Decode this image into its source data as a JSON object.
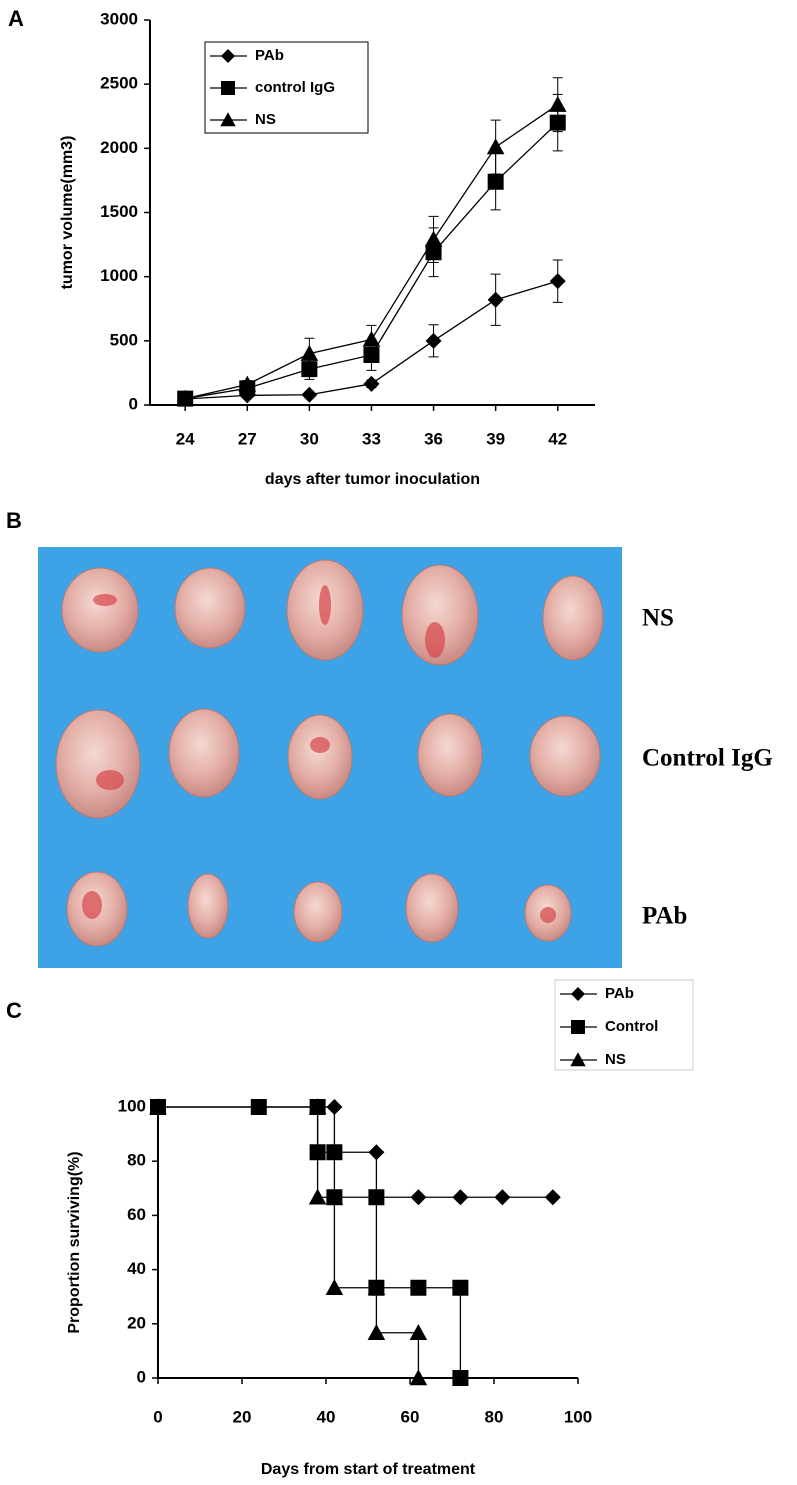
{
  "figure": {
    "panel_labels": [
      "A",
      "B",
      "C"
    ],
    "photo_labels": [
      "NS",
      "Control IgG",
      "PAb"
    ]
  },
  "chart_data": [
    {
      "type": "line",
      "x_label": "days after tumor inoculation",
      "y_label": "tumor volume(mm3)",
      "x": [
        24,
        27,
        30,
        33,
        36,
        39,
        42
      ],
      "xlim": [
        22.3,
        43.8
      ],
      "xticks": [
        24,
        27,
        30,
        33,
        36,
        39,
        42
      ],
      "ylim": [
        0,
        3000
      ],
      "yticks": [
        0,
        500,
        1000,
        1500,
        2000,
        2500,
        3000
      ],
      "legend": "upper left",
      "series": [
        {
          "name": "PAb",
          "color": "#000000",
          "marker": "diamond",
          "values": [
            47,
            75,
            80,
            165,
            500,
            820,
            965
          ],
          "errors": [
            null,
            20,
            20,
            30,
            125,
            200,
            165
          ]
        },
        {
          "name": "control IgG",
          "color": "#000000",
          "marker": "square",
          "values": [
            50,
            130,
            280,
            390,
            1190,
            1740,
            2200
          ],
          "errors": [
            null,
            30,
            80,
            120,
            190,
            220,
            220
          ]
        },
        {
          "name": "NS",
          "color": "#000000",
          "marker": "triangle",
          "values": [
            50,
            160,
            400,
            510,
            1290,
            2010,
            2340
          ],
          "errors": [
            null,
            30,
            120,
            110,
            180,
            210,
            210
          ]
        }
      ]
    },
    {
      "type": "line",
      "x_label": "Days from start of treatment",
      "y_label": "Proportion surviving(%)",
      "xlim": [
        0,
        100
      ],
      "xticks": [
        0,
        20,
        40,
        60,
        80,
        100
      ],
      "ylim": [
        0,
        100
      ],
      "yticks": [
        0,
        20,
        40,
        60,
        80,
        100
      ],
      "legend": "upper right",
      "series": [
        {
          "name": "PAb",
          "color": "#000000",
          "marker": "diamond",
          "x": [
            0,
            42,
            42,
            52,
            52,
            62,
            72,
            82,
            94
          ],
          "values": [
            100,
            100,
            83.3,
            83.3,
            66.7,
            66.7,
            66.7,
            66.7,
            66.7
          ]
        },
        {
          "name": "Control",
          "color": "#000000",
          "marker": "square",
          "x": [
            0,
            24,
            38,
            38,
            42,
            42,
            52,
            52,
            62,
            72,
            72
          ],
          "values": [
            100,
            100,
            100,
            83.3,
            83.3,
            66.7,
            66.7,
            33.3,
            33.3,
            33.3,
            0
          ]
        },
        {
          "name": "NS",
          "color": "#000000",
          "marker": "triangle",
          "x": [
            0,
            38,
            38,
            42,
            42,
            52,
            52,
            62,
            62
          ],
          "values": [
            100,
            100,
            66.7,
            66.7,
            33.3,
            33.3,
            16.7,
            16.7,
            0
          ]
        }
      ]
    }
  ]
}
